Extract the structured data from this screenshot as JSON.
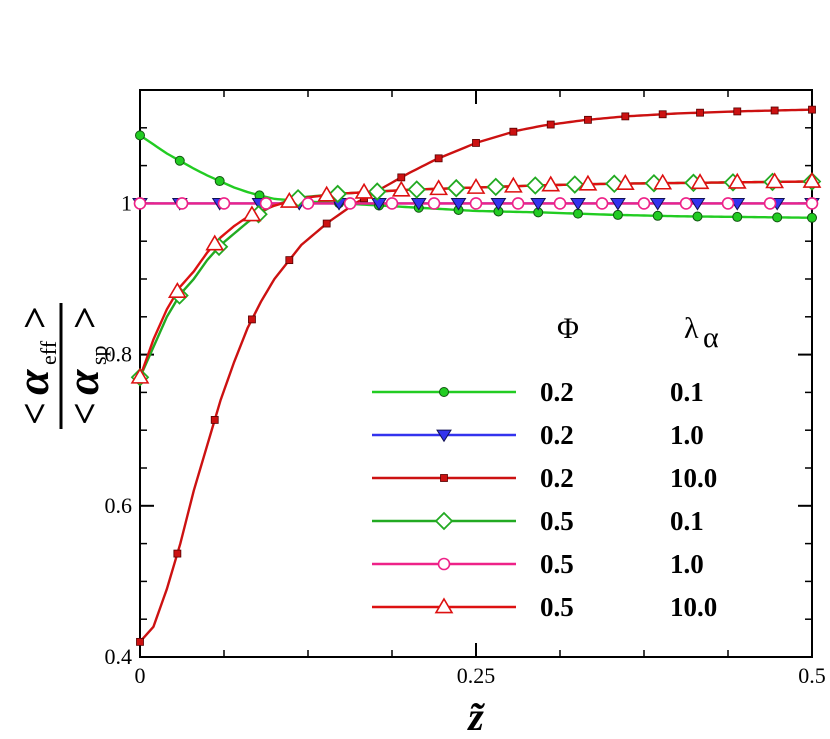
{
  "chart_data": {
    "type": "line",
    "title": "",
    "xlabel": "z̃",
    "ylabel": {
      "numerator_symbol": "α",
      "numerator_sub": "eff",
      "denominator_symbol": "α",
      "denominator_sub": "sp",
      "left_bracket": "<",
      "right_bracket": ">"
    },
    "xlim": [
      0,
      0.5
    ],
    "ylim": [
      0.4,
      1.15
    ],
    "xticks": [
      0,
      0.25,
      0.5
    ],
    "xtick_labels": [
      "0",
      "0.25",
      "0.5"
    ],
    "yticks": [
      0.4,
      0.6,
      0.8,
      1.0
    ],
    "ytick_labels": [
      "0.4",
      "0.6",
      "0.8",
      "1"
    ],
    "legend": {
      "position": "lower-right",
      "col_headers": [
        "Φ",
        "λ"
      ],
      "lambda_sub": "α"
    },
    "series": [
      {
        "name": "0.2 / 0.1",
        "phi": "0.2",
        "lambda": "0.1",
        "color": "#22cc22",
        "marker": "circle-filled",
        "x": [
          0,
          0.01,
          0.02,
          0.03,
          0.04,
          0.05,
          0.06,
          0.07,
          0.08,
          0.09,
          0.1,
          0.12,
          0.15,
          0.2,
          0.25,
          0.3,
          0.35,
          0.4,
          0.45,
          0.5
        ],
        "y": [
          1.09,
          1.078,
          1.066,
          1.056,
          1.046,
          1.037,
          1.029,
          1.021,
          1.015,
          1.01,
          1.006,
          1.003,
          1.0,
          0.995,
          0.99,
          0.988,
          0.985,
          0.983,
          0.982,
          0.981
        ],
        "marker_x": [
          0,
          0.0296,
          0.0593,
          0.0889,
          0.1185,
          0.1481,
          0.1778,
          0.2074,
          0.237,
          0.2667,
          0.2963,
          0.3259,
          0.3556,
          0.3852,
          0.4148,
          0.4444,
          0.4741,
          0.5
        ]
      },
      {
        "name": "0.2 / 1.0",
        "phi": "0.2",
        "lambda": "1.0",
        "color": "#3333ee",
        "marker": "triangle-down-filled",
        "x": [
          0,
          0.5
        ],
        "y": [
          1.0,
          1.0
        ],
        "marker_x": [
          0,
          0.0296,
          0.0593,
          0.0889,
          0.1185,
          0.1481,
          0.1778,
          0.2074,
          0.237,
          0.2667,
          0.2963,
          0.3259,
          0.3556,
          0.3852,
          0.4148,
          0.4444,
          0.4741,
          0.5
        ]
      },
      {
        "name": "0.2 / 10.0",
        "phi": "0.2",
        "lambda": "10.0",
        "color": "#cc1111",
        "marker": "square-filled",
        "x": [
          0,
          0.01,
          0.02,
          0.03,
          0.04,
          0.05,
          0.06,
          0.07,
          0.08,
          0.09,
          0.1,
          0.12,
          0.14,
          0.16,
          0.18,
          0.2,
          0.22,
          0.25,
          0.28,
          0.3,
          0.33,
          0.36,
          0.4,
          0.45,
          0.5
        ],
        "y": [
          0.42,
          0.44,
          0.49,
          0.55,
          0.62,
          0.68,
          0.74,
          0.79,
          0.835,
          0.87,
          0.9,
          0.945,
          0.975,
          1.0,
          1.02,
          1.04,
          1.058,
          1.08,
          1.096,
          1.103,
          1.11,
          1.115,
          1.119,
          1.122,
          1.124
        ],
        "marker_x": [
          0,
          0.0278,
          0.0556,
          0.0833,
          0.1111,
          0.1389,
          0.1667,
          0.1944,
          0.2222,
          0.25,
          0.2778,
          0.3056,
          0.3333,
          0.3611,
          0.3889,
          0.4167,
          0.4444,
          0.4722,
          0.5
        ]
      },
      {
        "name": "0.5 / 0.1",
        "phi": "0.5",
        "lambda": "0.1",
        "color": "#22aa22",
        "marker": "diamond-open",
        "x": [
          0,
          0.005,
          0.01,
          0.02,
          0.03,
          0.04,
          0.05,
          0.06,
          0.07,
          0.08,
          0.09,
          0.1,
          0.12,
          0.15,
          0.2,
          0.25,
          0.3,
          0.35,
          0.4,
          0.45,
          0.5
        ],
        "y": [
          0.77,
          0.79,
          0.81,
          0.85,
          0.88,
          0.9,
          0.925,
          0.945,
          0.96,
          0.975,
          0.988,
          0.998,
          1.008,
          1.013,
          1.018,
          1.021,
          1.024,
          1.026,
          1.027,
          1.028,
          1.029
        ],
        "marker_x": [
          0,
          0.0294,
          0.0588,
          0.0882,
          0.1176,
          0.1471,
          0.1765,
          0.2059,
          0.2353,
          0.2647,
          0.2941,
          0.3235,
          0.3529,
          0.3824,
          0.4118,
          0.4412,
          0.4706,
          0.5
        ]
      },
      {
        "name": "0.5 / 1.0",
        "phi": "0.5",
        "lambda": "1.0",
        "color": "#ee2288",
        "marker": "circle-open",
        "x": [
          0,
          0.5
        ],
        "y": [
          1.0,
          1.0
        ],
        "marker_x": [
          0,
          0.0313,
          0.0625,
          0.0938,
          0.125,
          0.1563,
          0.1875,
          0.2188,
          0.25,
          0.2813,
          0.3125,
          0.3438,
          0.375,
          0.4063,
          0.4375,
          0.4688,
          0.5
        ]
      },
      {
        "name": "0.5 / 10.0",
        "phi": "0.5",
        "lambda": "10.0",
        "color": "#dd1111",
        "marker": "triangle-up-open",
        "x": [
          0,
          0.005,
          0.01,
          0.02,
          0.03,
          0.04,
          0.05,
          0.06,
          0.07,
          0.08,
          0.09,
          0.1,
          0.12,
          0.15,
          0.2,
          0.25,
          0.3,
          0.35,
          0.4,
          0.45,
          0.5
        ],
        "y": [
          0.77,
          0.795,
          0.82,
          0.86,
          0.89,
          0.91,
          0.935,
          0.955,
          0.97,
          0.982,
          0.99,
          0.997,
          1.007,
          1.013,
          1.018,
          1.021,
          1.024,
          1.026,
          1.027,
          1.028,
          1.029
        ],
        "marker_x": [
          0,
          0.0278,
          0.0556,
          0.0833,
          0.1111,
          0.1389,
          0.1667,
          0.1944,
          0.2222,
          0.25,
          0.2778,
          0.3056,
          0.3333,
          0.3611,
          0.3889,
          0.4167,
          0.4444,
          0.4722,
          0.5
        ]
      }
    ]
  }
}
